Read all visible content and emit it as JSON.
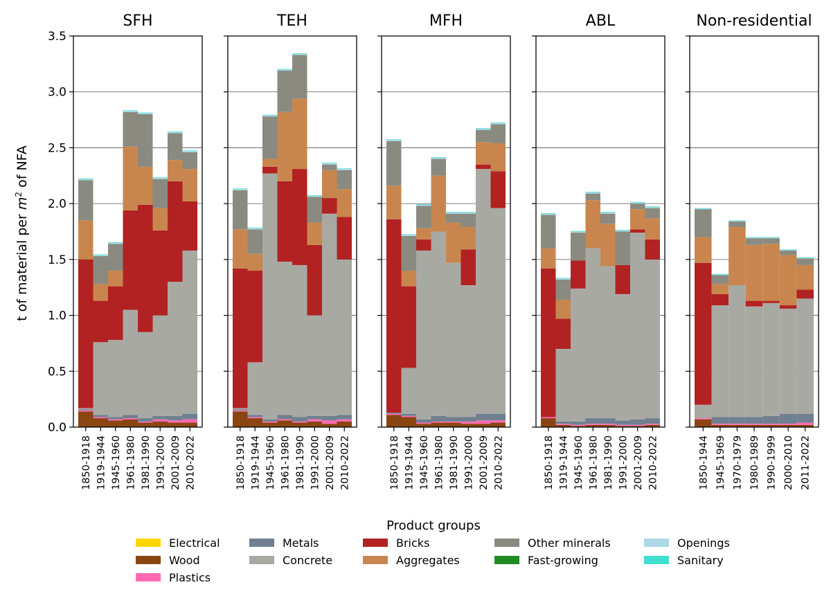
{
  "chart_data": {
    "type": "bar",
    "stacked": true,
    "ylabel_parts": {
      "pre": "t of material per ",
      "m": "m",
      "sup": "2",
      "post": " of NFA"
    },
    "ylim": [
      0,
      3.5
    ],
    "yticks": [
      "0.0",
      "0.5",
      "1.0",
      "1.5",
      "2.0",
      "2.5",
      "3.0",
      "3.5"
    ],
    "ytick_values": [
      0,
      0.5,
      1.0,
      1.5,
      2.0,
      2.5,
      3.0,
      3.5
    ],
    "grid": "horizontal",
    "legend": {
      "title": "Product groups",
      "placement": "bottom-center",
      "columns": [
        [
          "Electrical",
          "Wood",
          "Plastics"
        ],
        [
          "Metals",
          "Concrete"
        ],
        [
          "Bricks",
          "Aggregates"
        ],
        [
          "Other minerals",
          "Fast-growing"
        ],
        [
          "Openings",
          "Sanitary"
        ]
      ]
    },
    "stack_order": [
      "Wood",
      "Plastics",
      "Metals",
      "Concrete",
      "Bricks",
      "Aggregates",
      "Other minerals",
      "Openings",
      "Sanitary",
      "Electrical",
      "Fast-growing"
    ],
    "colors": {
      "Electrical": "#ffd700",
      "Wood": "#8b4513",
      "Plastics": "#ff69b4",
      "Metals": "#708090",
      "Concrete": "#a9a9a4",
      "Bricks": "#b22222",
      "Aggregates": "#c8864e",
      "Other minerals": "#8a8a80",
      "Fast-growing": "#228b22",
      "Openings": "#add8e6",
      "Sanitary": "#40e0d0"
    },
    "panels": [
      {
        "title": "SFH",
        "categories": [
          "1850-1918",
          "1919-1944",
          "1945-1960",
          "1961-1980",
          "1981-1990",
          "1991-2000",
          "2001-2009",
          "2010-2022"
        ],
        "series": [
          {
            "name": "Wood",
            "values": [
              0.14,
              0.08,
              0.06,
              0.07,
              0.04,
              0.05,
              0.04,
              0.04
            ]
          },
          {
            "name": "Plastics",
            "values": [
              0.01,
              0.01,
              0.01,
              0.01,
              0.01,
              0.02,
              0.02,
              0.03
            ]
          },
          {
            "name": "Metals",
            "values": [
              0.01,
              0.02,
              0.02,
              0.03,
              0.03,
              0.03,
              0.04,
              0.05
            ]
          },
          {
            "name": "Concrete",
            "values": [
              0.01,
              0.65,
              0.69,
              0.94,
              0.77,
              0.9,
              1.2,
              1.46
            ]
          },
          {
            "name": "Bricks",
            "values": [
              1.33,
              0.37,
              0.48,
              0.89,
              1.14,
              0.76,
              0.9,
              0.44
            ]
          },
          {
            "name": "Aggregates",
            "values": [
              0.35,
              0.15,
              0.14,
              0.57,
              0.34,
              0.2,
              0.19,
              0.29
            ]
          },
          {
            "name": "Other minerals",
            "values": [
              0.36,
              0.25,
              0.24,
              0.31,
              0.47,
              0.26,
              0.24,
              0.15
            ]
          },
          {
            "name": "Openings",
            "values": [
              0.01,
              0.01,
              0.01,
              0.01,
              0.01,
              0.01,
              0.01,
              0.01
            ]
          },
          {
            "name": "Sanitary",
            "values": [
              0.005,
              0.005,
              0.005,
              0.005,
              0.005,
              0.005,
              0.005,
              0.005
            ]
          }
        ]
      },
      {
        "title": "TEH",
        "categories": [
          "1850-1918",
          "1919-1944",
          "1945-1960",
          "1961-1980",
          "1981-1990",
          "1991-2000",
          "2001-2009",
          "2010-2022"
        ],
        "series": [
          {
            "name": "Wood",
            "values": [
              0.14,
              0.08,
              0.04,
              0.06,
              0.04,
              0.05,
              0.03,
              0.05
            ]
          },
          {
            "name": "Plastics",
            "values": [
              0.01,
              0.01,
              0.01,
              0.01,
              0.01,
              0.02,
              0.03,
              0.02
            ]
          },
          {
            "name": "Metals",
            "values": [
              0.01,
              0.02,
              0.02,
              0.04,
              0.04,
              0.03,
              0.04,
              0.04
            ]
          },
          {
            "name": "Concrete",
            "values": [
              0.01,
              0.47,
              2.2,
              1.37,
              1.36,
              0.9,
              1.81,
              1.39
            ]
          },
          {
            "name": "Bricks",
            "values": [
              1.25,
              0.82,
              0.06,
              0.72,
              0.86,
              0.63,
              0.14,
              0.38
            ]
          },
          {
            "name": "Aggregates",
            "values": [
              0.35,
              0.15,
              0.07,
              0.62,
              0.63,
              0.2,
              0.25,
              0.25
            ]
          },
          {
            "name": "Other minerals",
            "values": [
              0.35,
              0.22,
              0.38,
              0.37,
              0.39,
              0.23,
              0.05,
              0.17
            ]
          },
          {
            "name": "Openings",
            "values": [
              0.01,
              0.01,
              0.01,
              0.01,
              0.01,
              0.01,
              0.01,
              0.01
            ]
          },
          {
            "name": "Sanitary",
            "values": [
              0.005,
              0.005,
              0.005,
              0.005,
              0.005,
              0.005,
              0.005,
              0.005
            ]
          }
        ]
      },
      {
        "title": "MFH",
        "categories": [
          "1850-1918",
          "1919-1944",
          "1945-1960",
          "1961-1980",
          "1981-1990",
          "1991-2000",
          "2001-2009",
          "2010-2022"
        ],
        "series": [
          {
            "name": "Wood",
            "values": [
              0.11,
              0.09,
              0.03,
              0.04,
              0.04,
              0.03,
              0.03,
              0.04
            ]
          },
          {
            "name": "Plastics",
            "values": [
              0.01,
              0.01,
              0.01,
              0.01,
              0.01,
              0.02,
              0.03,
              0.02
            ]
          },
          {
            "name": "Metals",
            "values": [
              0.01,
              0.02,
              0.03,
              0.05,
              0.04,
              0.04,
              0.06,
              0.06
            ]
          },
          {
            "name": "Concrete",
            "values": [
              0.0,
              0.41,
              1.51,
              1.65,
              1.38,
              1.18,
              2.19,
              1.84
            ]
          },
          {
            "name": "Bricks",
            "values": [
              1.73,
              0.73,
              0.1,
              0.0,
              0.0,
              0.32,
              0.04,
              0.33
            ]
          },
          {
            "name": "Aggregates",
            "values": [
              0.3,
              0.14,
              0.1,
              0.5,
              0.36,
              0.2,
              0.2,
              0.25
            ]
          },
          {
            "name": "Other minerals",
            "values": [
              0.4,
              0.31,
              0.2,
              0.15,
              0.08,
              0.12,
              0.11,
              0.17
            ]
          },
          {
            "name": "Openings",
            "values": [
              0.01,
              0.01,
              0.01,
              0.01,
              0.01,
              0.01,
              0.01,
              0.01
            ]
          },
          {
            "name": "Sanitary",
            "values": [
              0.005,
              0.005,
              0.005,
              0.005,
              0.005,
              0.005,
              0.005,
              0.005
            ]
          }
        ]
      },
      {
        "title": "ABL",
        "categories": [
          "1850-1918",
          "1919-1944",
          "1945-1960",
          "1961-1980",
          "1981-1990",
          "1991-2000",
          "2001-2009",
          "2010-2022"
        ],
        "series": [
          {
            "name": "Wood",
            "values": [
              0.08,
              0.02,
              0.01,
              0.02,
              0.02,
              0.01,
              0.01,
              0.02
            ]
          },
          {
            "name": "Plastics",
            "values": [
              0.01,
              0.01,
              0.01,
              0.01,
              0.01,
              0.01,
              0.01,
              0.01
            ]
          },
          {
            "name": "Metals",
            "values": [
              0.0,
              0.02,
              0.03,
              0.05,
              0.05,
              0.04,
              0.05,
              0.05
            ]
          },
          {
            "name": "Concrete",
            "values": [
              0.0,
              0.65,
              1.19,
              1.52,
              1.36,
              1.13,
              1.67,
              1.42
            ]
          },
          {
            "name": "Bricks",
            "values": [
              1.33,
              0.27,
              0.25,
              0.0,
              0.0,
              0.26,
              0.03,
              0.18
            ]
          },
          {
            "name": "Aggregates",
            "values": [
              0.18,
              0.17,
              0.0,
              0.43,
              0.38,
              0.0,
              0.18,
              0.19
            ]
          },
          {
            "name": "Other minerals",
            "values": [
              0.3,
              0.18,
              0.25,
              0.06,
              0.09,
              0.3,
              0.05,
              0.09
            ]
          },
          {
            "name": "Openings",
            "values": [
              0.01,
              0.01,
              0.01,
              0.01,
              0.01,
              0.01,
              0.01,
              0.01
            ]
          },
          {
            "name": "Sanitary",
            "values": [
              0.005,
              0.005,
              0.005,
              0.005,
              0.005,
              0.005,
              0.005,
              0.005
            ]
          }
        ]
      },
      {
        "title": "Non-residential",
        "categories": [
          "1850-1944",
          "1945-1969",
          "1970-1979",
          "1980-1989",
          "1990-1999",
          "2000-2010",
          "2011-2022"
        ],
        "series": [
          {
            "name": "Wood",
            "values": [
              0.07,
              0.02,
              0.02,
              0.02,
              0.02,
              0.02,
              0.02
            ]
          },
          {
            "name": "Plastics",
            "values": [
              0.01,
              0.01,
              0.01,
              0.01,
              0.01,
              0.01,
              0.02
            ]
          },
          {
            "name": "Metals",
            "values": [
              0.0,
              0.06,
              0.06,
              0.06,
              0.07,
              0.09,
              0.08
            ]
          },
          {
            "name": "Concrete",
            "values": [
              0.12,
              1.0,
              1.18,
              0.99,
              1.01,
              0.94,
              1.03
            ]
          },
          {
            "name": "Bricks",
            "values": [
              1.27,
              0.1,
              0.0,
              0.05,
              0.02,
              0.03,
              0.08
            ]
          },
          {
            "name": "Aggregates",
            "values": [
              0.23,
              0.09,
              0.52,
              0.5,
              0.51,
              0.45,
              0.22
            ]
          },
          {
            "name": "Other minerals",
            "values": [
              0.25,
              0.08,
              0.05,
              0.06,
              0.05,
              0.04,
              0.06
            ]
          },
          {
            "name": "Openings",
            "values": [
              0.005,
              0.005,
              0.005,
              0.005,
              0.005,
              0.005,
              0.005
            ]
          },
          {
            "name": "Sanitary",
            "values": [
              0.005,
              0.005,
              0.005,
              0.005,
              0.005,
              0.005,
              0.005
            ]
          }
        ]
      }
    ]
  }
}
